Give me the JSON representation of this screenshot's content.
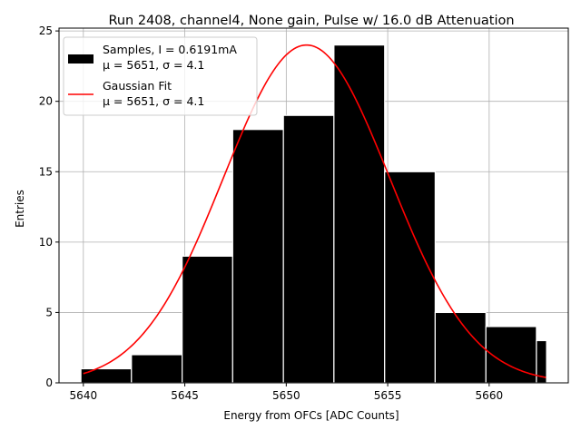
{
  "chart_data": {
    "type": "bar",
    "title": "Run 2408, channel4, None gain, Pulse w/ 16.0 dB Attenuation",
    "xlabel": "Energy from OFCs [ADC Counts]",
    "ylabel": "Entries",
    "xlim": [
      5638.8,
      5663.9
    ],
    "ylim": [
      0,
      25.2
    ],
    "xticks": [
      5640,
      5645,
      5650,
      5655,
      5660
    ],
    "yticks": [
      0,
      5,
      10,
      15,
      20,
      25
    ],
    "grid": true,
    "legend_position": "upper-left",
    "histogram": {
      "name": "Samples, I = 0.6191mA",
      "stats_label": "μ = 5651, σ = 4.1",
      "color": "#000000",
      "edgecolor": "#ffffff",
      "bin_edges": [
        5639.88,
        5642.37,
        5644.87,
        5647.36,
        5649.86,
        5652.35,
        5654.85,
        5657.34,
        5659.84,
        5662.33,
        5662.83
      ],
      "counts": [
        1,
        2,
        9,
        18,
        19,
        24,
        15,
        5,
        4,
        3
      ]
    },
    "fit": {
      "name": "Gaussian Fit",
      "stats_label": "μ = 5651, σ = 4.1",
      "color": "#ff0000",
      "amplitude": 24,
      "mean": 5651,
      "sigma": 4.1,
      "x_range": [
        5640,
        5662.8
      ]
    }
  }
}
